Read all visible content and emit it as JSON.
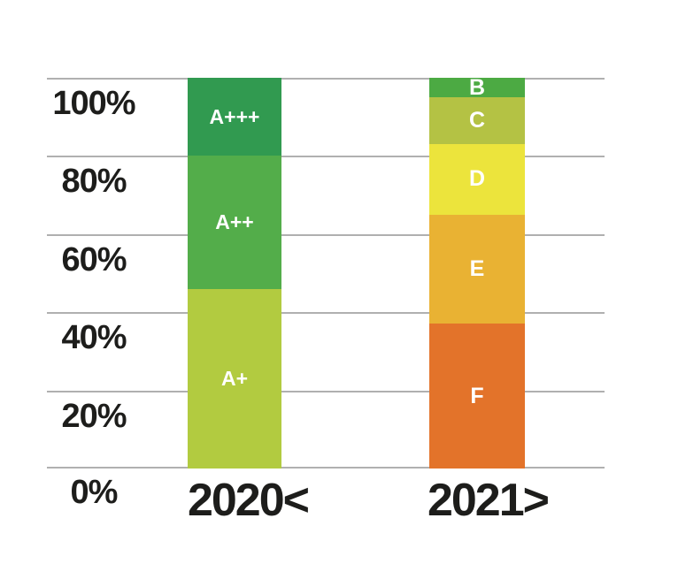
{
  "chart_data": {
    "type": "bar",
    "subtype": "stacked-percentage-columns",
    "title": "",
    "xlabel": "",
    "ylabel": "",
    "ylim": [
      0,
      100
    ],
    "grid": true,
    "legend": "none",
    "gridline_color": "#b0b0b0",
    "axis_text_color": "#1d1d1b",
    "segment_label_color": "#ffffff",
    "background_color": "#ffffff",
    "categories": [
      "2020<",
      "2021>"
    ],
    "yticks": [
      {
        "value": 100,
        "label": "100%"
      },
      {
        "value": 80,
        "label": "80%"
      },
      {
        "value": 60,
        "label": "60%"
      },
      {
        "value": 40,
        "label": "40%"
      },
      {
        "value": 20,
        "label": "20%"
      },
      {
        "value": 0,
        "label": "0%"
      }
    ],
    "bars": [
      {
        "category": "2020<",
        "segments_top_to_bottom": [
          {
            "label": "A+++",
            "value": 20,
            "color": "#319a50"
          },
          {
            "label": "A++",
            "value": 34,
            "color": "#53ad4a"
          },
          {
            "label": "A+",
            "value": 46,
            "color": "#b2cb40"
          }
        ]
      },
      {
        "category": "2021>",
        "segments_top_to_bottom": [
          {
            "label": "B",
            "value": 5,
            "color": "#4caa43"
          },
          {
            "label": "C",
            "value": 12,
            "color": "#b4c244"
          },
          {
            "label": "D",
            "value": 18,
            "color": "#ece43c"
          },
          {
            "label": "E",
            "value": 28,
            "color": "#e9b233"
          },
          {
            "label": "F",
            "value": 37,
            "color": "#e3732a"
          }
        ]
      }
    ]
  }
}
